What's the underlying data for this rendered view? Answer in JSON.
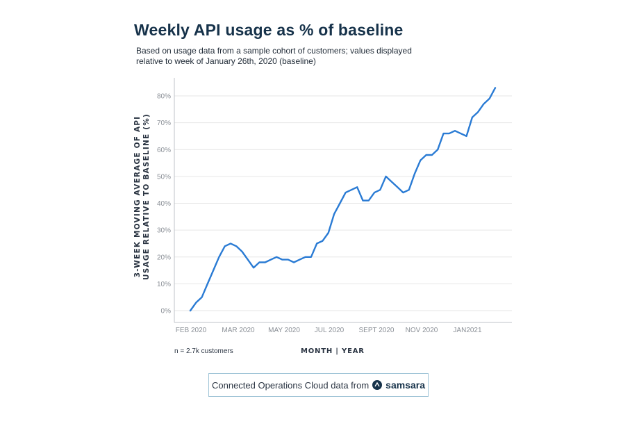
{
  "title": "Weekly API usage as % of baseline",
  "subtitle": "Based on usage data from a sample cohort of customers; values displayed relative to week of January 26th, 2020 (baseline)",
  "note": "n = 2.7k customers",
  "footer": {
    "text": "Connected Operations Cloud data from",
    "logo_text": "samsara"
  },
  "colors": {
    "line": "#2a7bd4",
    "title": "#16324a",
    "grid": "#e6e6e6"
  },
  "chart_data": {
    "type": "line",
    "title": "Weekly API usage as % of baseline",
    "xlabel": "MONTH | YEAR",
    "ylabel": "3-WEEK MOVING AVERAGE OF API USAGE RELATIVE TO BASELINE (%)",
    "ylim": [
      0,
      85
    ],
    "yticks": [
      0,
      10,
      20,
      30,
      40,
      50,
      60,
      70,
      80
    ],
    "ytick_labels": [
      "0%",
      "10%",
      "20%",
      "30%",
      "40%",
      "50%",
      "60%",
      "70%",
      "80%"
    ],
    "xtick_labels": [
      "FEB 2020",
      "MAR 2020",
      "MAY 2020",
      "JUL 2020",
      "SEPT 2020",
      "NOV 2020",
      "JAN2021"
    ],
    "xtick_weeks": [
      0,
      8.5,
      17,
      25.5,
      34,
      42.5,
      51
    ],
    "grid": "horizontal",
    "legend": "none",
    "series": [
      {
        "x": [
          0,
          1,
          2,
          3,
          4,
          5,
          6,
          7,
          8,
          9,
          10,
          11,
          12,
          13,
          14,
          15,
          16,
          17,
          18,
          19,
          20,
          21,
          22,
          23,
          24,
          25,
          26,
          27,
          28,
          29,
          30,
          31,
          32,
          33,
          34,
          35,
          36,
          37,
          38,
          39,
          40,
          41,
          42,
          43,
          44,
          45,
          46,
          47,
          48,
          49,
          50,
          51,
          52,
          53,
          54,
          55,
          56
        ],
        "values": [
          0,
          3,
          5,
          10,
          15,
          20,
          24,
          25,
          24,
          22,
          19,
          16,
          18,
          18,
          19,
          20,
          19,
          19,
          18,
          19,
          20,
          20,
          25,
          26,
          29,
          36,
          40,
          44,
          45,
          46,
          41,
          41,
          44,
          45,
          50,
          48,
          46,
          44,
          45,
          51,
          56,
          58,
          58,
          60,
          66,
          66,
          67,
          66,
          65,
          72,
          74,
          77,
          79,
          83,
          83,
          83,
          83
        ]
      }
    ]
  }
}
